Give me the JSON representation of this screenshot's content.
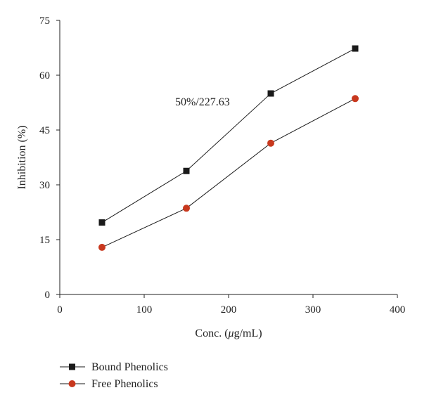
{
  "chart_data": {
    "type": "line",
    "xlabel_prefix": "Conc. (",
    "xlabel_mu": "μ",
    "xlabel_suffix": "g/mL)",
    "ylabel": "Inhibition (%)",
    "xlim": [
      0,
      400
    ],
    "ylim": [
      0,
      75
    ],
    "x_ticks": [
      0,
      100,
      200,
      300,
      400
    ],
    "y_ticks": [
      0,
      15,
      30,
      45,
      60,
      75
    ],
    "x_tick_labels": [
      "0",
      "100",
      "200",
      "300",
      "400"
    ],
    "y_tick_labels": [
      "0",
      "15",
      "30",
      "45",
      "60",
      "75"
    ],
    "x": [
      50,
      150,
      250,
      350
    ],
    "series": [
      {
        "name": "Bound Phenolics",
        "marker": "square",
        "color": "#1a1a1a",
        "values": [
          19.7,
          33.8,
          55.0,
          67.3
        ]
      },
      {
        "name": "Free Phenolics",
        "marker": "circle",
        "color": "#c8381e",
        "values": [
          12.9,
          23.6,
          41.4,
          53.6
        ]
      }
    ],
    "annotation": "50%/227.63",
    "legend": "bottom-left",
    "grid": false
  }
}
